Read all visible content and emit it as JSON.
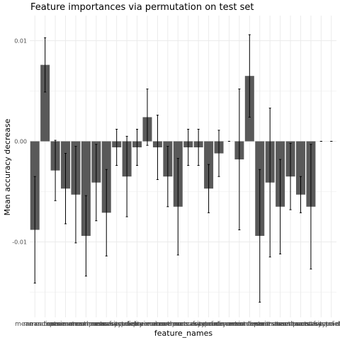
{
  "chart_data": {
    "type": "bar",
    "title": "Feature importances via permutation on test set",
    "xlabel": "feature_names",
    "ylabel": "Mean accuracy decrease",
    "ylim": [
      -0.0175,
      0.0125
    ],
    "yticks": [
      0.01,
      0.0,
      -0.01
    ],
    "ytick_labels": [
      "0.01",
      "0.00",
      "-0.01"
    ],
    "grid": true,
    "legend": "none",
    "colors": {
      "bar": "#595959",
      "error_bar": "#000000",
      "grid": "#ebebeb",
      "tick_text": "#4d4d4d"
    },
    "categories": [
      "mean radius",
      "mean texture",
      "mean perimeter",
      "mean area",
      "mean smoothness",
      "mean compactness",
      "mean concavity",
      "mean concave points",
      "mean symmetry",
      "mean fractal dimension",
      "radius error",
      "texture error",
      "perimeter error",
      "area error",
      "smoothness error",
      "compactness error",
      "concavity error",
      "concave points error",
      "symmetry error",
      "fractal dimension error",
      "worst radius",
      "worst texture",
      "worst perimeter",
      "worst area",
      "worst smoothness",
      "worst compactness",
      "worst concavity",
      "worst concave points",
      "worst symmetry",
      "worst fractal dimension"
    ],
    "values": [
      -0.0088,
      0.0076,
      -0.0029,
      -0.0047,
      -0.0053,
      -0.0094,
      -0.0041,
      -0.0071,
      -0.0006,
      -0.0035,
      -0.0006,
      0.0024,
      -0.0006,
      -0.0035,
      -0.0065,
      -0.0006,
      -0.0006,
      -0.0047,
      -0.0012,
      0.0,
      -0.0018,
      0.0065,
      -0.0094,
      -0.0041,
      -0.0065,
      -0.0035,
      -0.0053,
      -0.0065,
      0.0,
      0.0
    ],
    "errors": [
      0.0053,
      0.0027,
      0.003,
      0.0035,
      0.0048,
      0.004,
      0.0038,
      0.0043,
      0.0018,
      0.004,
      0.0018,
      0.0028,
      0.0032,
      0.003,
      0.0048,
      0.0018,
      0.0018,
      0.0024,
      0.0023,
      0.0,
      0.007,
      0.0041,
      0.0066,
      0.0074,
      0.0047,
      0.0033,
      0.0018,
      0.0062,
      0.0,
      0.0
    ]
  }
}
